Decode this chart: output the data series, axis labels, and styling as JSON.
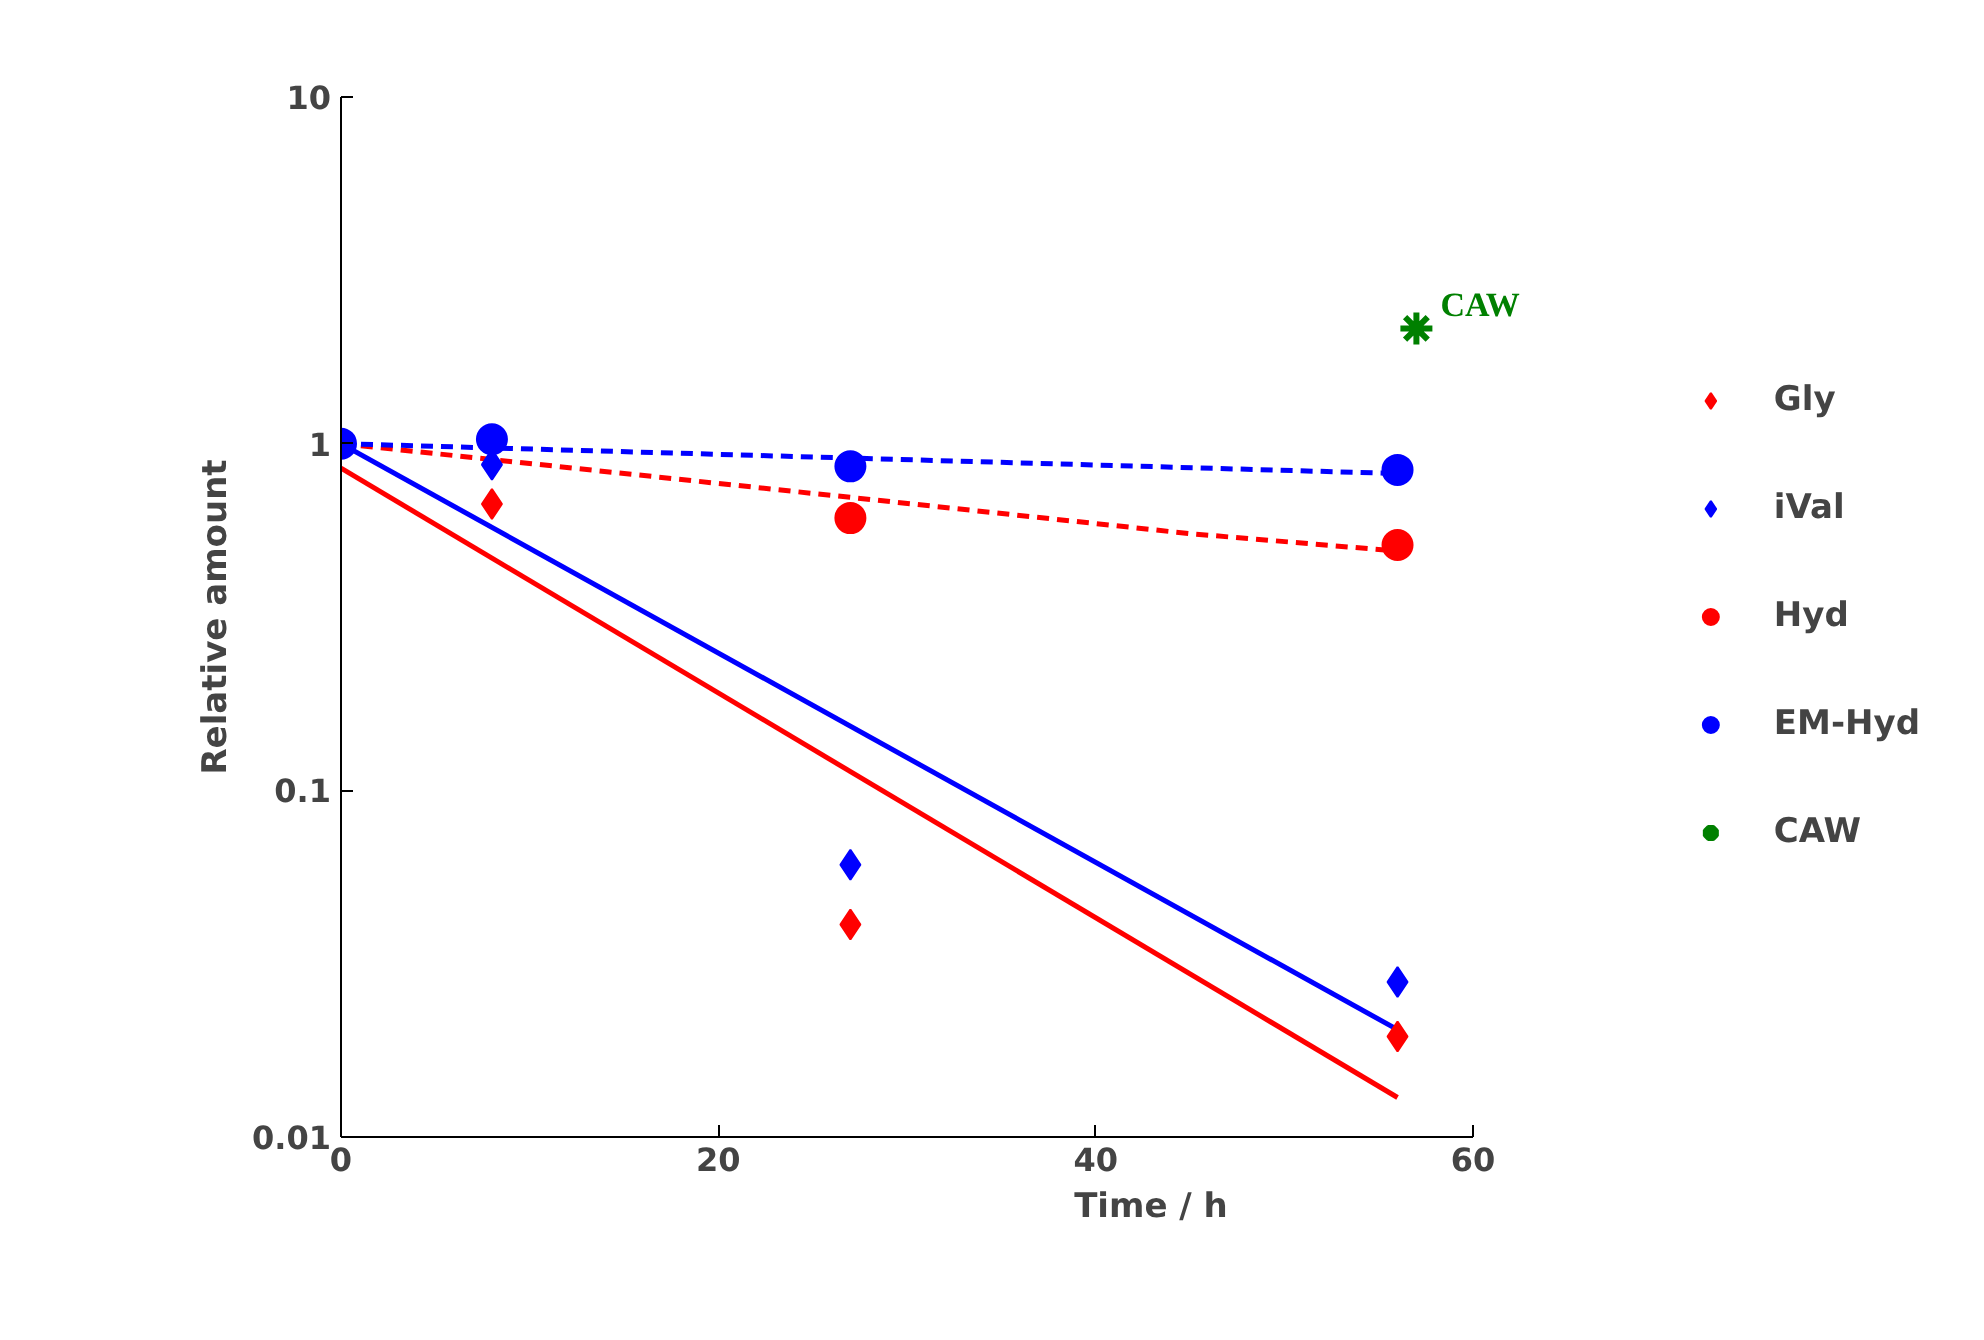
{
  "chart_data": {
    "type": "scatter",
    "xlabel": "Time / h",
    "ylabel": "Relative amount",
    "xlim": [
      0,
      60
    ],
    "xticks": [
      0,
      20,
      40,
      60
    ],
    "ylim": [
      0.01,
      10
    ],
    "yticks": [
      0.01,
      0.1,
      1,
      10
    ],
    "log": true,
    "grid": false,
    "legend": "right",
    "series": [
      {
        "type": "line",
        "color": "#ff0000",
        "line_style": "solid",
        "x": [
          0,
          56
        ],
        "values": [
          0.85,
          0.013
        ]
      },
      {
        "type": "line",
        "color": "#0000ff",
        "line_style": "solid",
        "x": [
          0,
          56
        ],
        "values": [
          1.0,
          0.0204
        ]
      },
      {
        "type": "line",
        "color": "#ff0000",
        "line_style": "dashed",
        "x": [
          0,
          8,
          27,
          45,
          56
        ],
        "values": [
          1.0,
          0.9,
          0.7,
          0.55,
          0.49
        ]
      },
      {
        "type": "line",
        "color": "#0000ff",
        "line_style": "dashed",
        "x": [
          0,
          56
        ],
        "values": [
          1.0,
          0.82
        ]
      },
      {
        "name": "Gly",
        "color": "#ff0000",
        "marker": "diamond",
        "x": [
          8,
          27,
          56
        ],
        "values": [
          0.67,
          0.041,
          0.0195
        ]
      },
      {
        "name": "iVal",
        "color": "#0000ff",
        "marker": "diamond",
        "x": [
          8,
          27,
          56
        ],
        "values": [
          0.87,
          0.061,
          0.028
        ]
      },
      {
        "name": "Hyd",
        "color": "#ff0000",
        "marker": "circle",
        "x": [
          27,
          56
        ],
        "values": [
          0.61,
          0.51
        ]
      },
      {
        "name": "EM-Hyd",
        "color": "#0000ff",
        "marker": "circle",
        "x": [
          0,
          8,
          27,
          56
        ],
        "values": [
          1.0,
          1.03,
          0.86,
          0.84
        ]
      },
      {
        "name": "CAW",
        "color": "#008000",
        "marker": "cross",
        "x": [
          57
        ],
        "values": [
          2.15
        ]
      }
    ],
    "annotations": [
      {
        "text": "CAW",
        "x": 57,
        "y": 2.15
      }
    ]
  }
}
